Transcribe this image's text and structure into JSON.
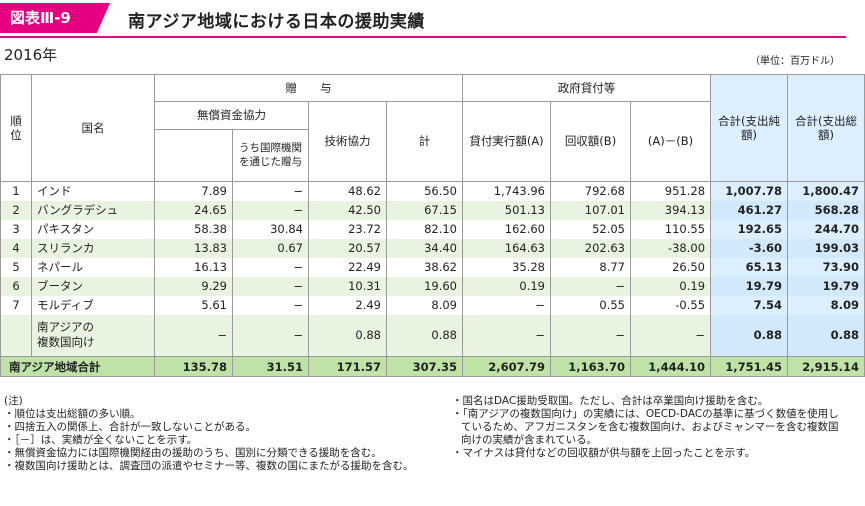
{
  "header": {
    "badge": "図表Ⅲ-9",
    "title": "南アジア地域における日本の援助実績"
  },
  "year": "2016年",
  "unit": "（単位：百万ドル）",
  "columns": {
    "rank": "順位",
    "country": "国名",
    "grant_group": "贈　　与",
    "grant_aid": "無償資金協力",
    "via_intl": "うち国際機関を通じた贈与",
    "tech": "技術協力",
    "subtotal": "計",
    "loan_group": "政府貸付等",
    "loan_disbursed": "貸付実行額(A)",
    "loan_recovered": "回収額(B)",
    "loan_net": "(A)－(B)",
    "total_net": "合計(支出純額)",
    "total_gross": "合計(支出総額)"
  },
  "rows": [
    {
      "rank": "1",
      "country": "インド",
      "grant_aid": "7.89",
      "via_intl": "−",
      "tech": "48.62",
      "subtotal": "56.50",
      "loan_a": "1,743.96",
      "loan_b": "792.68",
      "loan_net": "951.28",
      "total_net": "1,007.78",
      "total_gross": "1,800.47"
    },
    {
      "rank": "2",
      "country": "バングラデシュ",
      "grant_aid": "24.65",
      "via_intl": "−",
      "tech": "42.50",
      "subtotal": "67.15",
      "loan_a": "501.13",
      "loan_b": "107.01",
      "loan_net": "394.13",
      "total_net": "461.27",
      "total_gross": "568.28"
    },
    {
      "rank": "3",
      "country": "パキスタン",
      "grant_aid": "58.38",
      "via_intl": "30.84",
      "tech": "23.72",
      "subtotal": "82.10",
      "loan_a": "162.60",
      "loan_b": "52.05",
      "loan_net": "110.55",
      "total_net": "192.65",
      "total_gross": "244.70"
    },
    {
      "rank": "4",
      "country": "スリランカ",
      "grant_aid": "13.83",
      "via_intl": "0.67",
      "tech": "20.57",
      "subtotal": "34.40",
      "loan_a": "164.63",
      "loan_b": "202.63",
      "loan_net": "-38.00",
      "total_net": "-3.60",
      "total_gross": "199.03"
    },
    {
      "rank": "5",
      "country": "ネパール",
      "grant_aid": "16.13",
      "via_intl": "−",
      "tech": "22.49",
      "subtotal": "38.62",
      "loan_a": "35.28",
      "loan_b": "8.77",
      "loan_net": "26.50",
      "total_net": "65.13",
      "total_gross": "73.90"
    },
    {
      "rank": "6",
      "country": "ブータン",
      "grant_aid": "9.29",
      "via_intl": "−",
      "tech": "10.31",
      "subtotal": "19.60",
      "loan_a": "0.19",
      "loan_b": "−",
      "loan_net": "0.19",
      "total_net": "19.79",
      "total_gross": "19.79"
    },
    {
      "rank": "7",
      "country": "モルディブ",
      "grant_aid": "5.61",
      "via_intl": "−",
      "tech": "2.49",
      "subtotal": "8.09",
      "loan_a": "−",
      "loan_b": "0.55",
      "loan_net": "-0.55",
      "total_net": "7.54",
      "total_gross": "8.09"
    }
  ],
  "multi": {
    "rank": "",
    "country1": "南アジアの",
    "country2": "複数国向け",
    "grant_aid": "−",
    "via_intl": "−",
    "tech": "0.88",
    "subtotal": "0.88",
    "loan_a": "−",
    "loan_b": "−",
    "loan_net": "−",
    "total_net": "0.88",
    "total_gross": "0.88"
  },
  "total": {
    "label": "南アジア地域合計",
    "grant_aid": "135.78",
    "via_intl": "31.51",
    "tech": "171.57",
    "subtotal": "307.35",
    "loan_a": "2,607.79",
    "loan_b": "1,163.70",
    "loan_net": "1,444.10",
    "total_net": "1,751.45",
    "total_gross": "2,915.14"
  },
  "notes_left": [
    "(注)",
    "・順位は支出総額の多い順。",
    "・四捨五入の関係上、合計が一致しないことがある。",
    "・［－］は、実績が全くないことを示す。",
    "・無償資金協力には国際機関経由の援助のうち、国別に分類できる援助を含む。",
    "・複数国向け援助とは、調査団の派遣やセミナー等、複数の国にまたがる援助を含む。"
  ],
  "notes_right": [
    "・国名はDAC援助受取国。ただし、合計は卒業国向け援助を含む。",
    "・「南アジアの複数国向け」の実績には、OECD-DACの基準に基づく数値を使用しているため、アフガニスタンを含む複数国向け、およびミャンマーを含む複数国向けの実績が含まれている。",
    "・マイナスは貸付などの回収額が供与額を上回ったことを示す。"
  ]
}
